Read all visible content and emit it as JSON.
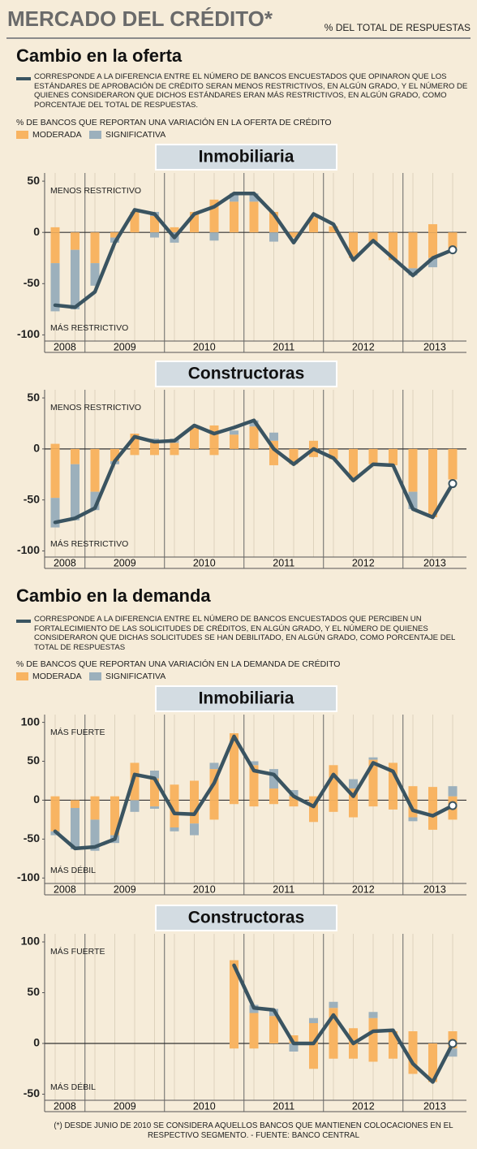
{
  "header": {
    "title": "MERCADO DEL CRÉDITO*",
    "subtitle": "% DEL TOTAL DE RESPUESTAS"
  },
  "sections": [
    {
      "title": "Cambio en la oferta",
      "line_note": "CORRESPONDE A LA DIFERENCIA ENTRE EL NÚMERO DE BANCOS ENCUESTADOS QUE OPINARON QUE LOS ESTÁNDARES DE APROBACIÓN DE CRÉDITO SERAN MENOS RESTRICTIVOS, EN ALGÚN GRADO, Y EL NÚMERO DE QUIENES CONSIDERARON QUE DICHOS ESTÁNDARES ERAN MÁS RESTRICTIVOS, EN ALGÚN GRADO, COMO PORCENTAJE DEL TOTAL DE RESPUESTAS.",
      "bar_note": "% DE BANCOS QUE REPORTAN UNA VARIACIÓN EN LA OFERTA DE CRÉDITO"
    },
    {
      "title": "Cambio en la demanda",
      "line_note": "CORRESPONDE A LA DIFERENCIA ENTRE EL NÚMERO DE BANCOS ENCUESTADOS QUE PERCIBEN UN FORTALECIMIENTO DE LAS SOLICITUDES DE CRÉDITOS, EN ALGÚN GRADO, Y EL NÚMERO DE QUIENES CONSIDERARON QUE DICHAS SOLICITUDES SE HAN DEBILITADO, EN ALGÚN GRADO, COMO PORCENTAJE DEL TOTAL DE RESPUESTAS",
      "bar_note": "% DE BANCOS QUE REPORTAN UNA VARIACIÓN EN LA DEMANDA DE CRÉDITO"
    }
  ],
  "chart_data": [
    {
      "type": "bar-line",
      "title": "Inmobiliaria",
      "annotations": [
        "MENOS RESTRICTIVO",
        "MÁS RESTRICTIVO"
      ],
      "categories": [
        null,
        null,
        null,
        null,
        null,
        null,
        null,
        null,
        null,
        null,
        null,
        null,
        null,
        null,
        null,
        null,
        null,
        null,
        null,
        null,
        null
      ],
      "years": [
        {
          "label": "2008",
          "quarters": 2
        },
        {
          "label": "2009",
          "quarters": 4
        },
        {
          "label": "2010",
          "quarters": 4
        },
        {
          "label": "2011",
          "quarters": 4
        },
        {
          "label": "2012",
          "quarters": 4
        },
        {
          "label": "2013",
          "quarters": 3
        }
      ],
      "ylim": [
        -106,
        58
      ],
      "yticks": [
        50,
        0,
        -50,
        -100
      ],
      "series": [
        {
          "name": "MODERADA",
          "color": "#f8b462",
          "values": [
            5,
            0,
            0,
            0,
            20,
            16,
            5,
            20,
            32,
            30,
            30,
            20,
            0,
            15,
            6,
            0,
            0,
            0,
            0,
            8,
            0
          ],
          "values_negative": [
            -30,
            -17,
            -30,
            -5,
            0,
            0,
            0,
            0,
            0,
            0,
            0,
            0,
            -5,
            0,
            0,
            -25,
            -10,
            -27,
            -35,
            -25,
            -15
          ]
        },
        {
          "name": "SIGNIFICATIVA",
          "color": "#9cb0bc",
          "values": [
            0,
            0,
            0,
            0,
            0,
            4,
            0,
            0,
            0,
            8,
            8,
            0,
            0,
            0,
            0,
            0,
            0,
            0,
            0,
            0,
            0
          ],
          "values_negative": [
            -47,
            -58,
            -22,
            -5,
            0,
            -5,
            -10,
            0,
            -8,
            0,
            0,
            -9,
            0,
            0,
            0,
            0,
            0,
            0,
            -7,
            -9,
            0
          ]
        },
        {
          "color": "#3a5461",
          "values": [
            -71,
            -73,
            -58,
            -10,
            22,
            18,
            -5,
            18,
            25,
            38,
            38,
            18,
            -10,
            18,
            8,
            -27,
            -8,
            -25,
            -42,
            -25,
            -17
          ]
        }
      ]
    },
    {
      "type": "bar-line",
      "title": "Constructoras",
      "annotations": [
        "MENOS RESTRICTIVO",
        "MÁS RESTRICTIVO"
      ],
      "categories": [
        null,
        null,
        null,
        null,
        null,
        null,
        null,
        null,
        null,
        null,
        null,
        null,
        null,
        null,
        null,
        null,
        null,
        null,
        null,
        null,
        null
      ],
      "years": [
        {
          "label": "2008",
          "quarters": 2
        },
        {
          "label": "2009",
          "quarters": 4
        },
        {
          "label": "2010",
          "quarters": 4
        },
        {
          "label": "2011",
          "quarters": 4
        },
        {
          "label": "2012",
          "quarters": 4
        },
        {
          "label": "2013",
          "quarters": 3
        }
      ],
      "ylim": [
        -106,
        58
      ],
      "yticks": [
        50,
        0,
        -50,
        -100
      ],
      "series": [
        {
          "name": "MODERADA",
          "color": "#f8b462",
          "values": [
            5,
            0,
            0,
            0,
            15,
            7,
            6,
            22,
            23,
            14,
            22,
            8,
            0,
            8,
            0,
            0,
            0,
            0,
            0,
            0,
            0
          ],
          "values_negative": [
            -48,
            -15,
            -42,
            -12,
            -6,
            -6,
            -6,
            0,
            -6,
            0,
            0,
            -16,
            -15,
            -8,
            -10,
            -30,
            -15,
            -16,
            -42,
            -67,
            -30
          ]
        },
        {
          "name": "SIGNIFICATIVA",
          "color": "#9cb0bc",
          "values": [
            0,
            0,
            0,
            0,
            0,
            3,
            4,
            0,
            0,
            4,
            6,
            8,
            0,
            0,
            0,
            0,
            0,
            0,
            0,
            0,
            0
          ],
          "values_negative": [
            -29,
            -55,
            -18,
            -3,
            0,
            0,
            0,
            0,
            0,
            0,
            0,
            0,
            0,
            0,
            0,
            0,
            0,
            0,
            -17,
            0,
            0
          ]
        },
        {
          "color": "#3a5461",
          "values": [
            -72,
            -68,
            -58,
            -12,
            12,
            7,
            8,
            23,
            15,
            21,
            28,
            0,
            -15,
            0,
            -9,
            -31,
            -15,
            -16,
            -59,
            -67,
            -34
          ]
        }
      ]
    },
    {
      "type": "bar-line",
      "title": "Inmobiliaria",
      "annotations": [
        "MÁS FUERTE",
        "MÁS DÉBIL"
      ],
      "categories": [
        null,
        null,
        null,
        null,
        null,
        null,
        null,
        null,
        null,
        null,
        null,
        null,
        null,
        null,
        null,
        null,
        null,
        null,
        null,
        null,
        null
      ],
      "years": [
        {
          "label": "2008",
          "quarters": 2
        },
        {
          "label": "2009",
          "quarters": 4
        },
        {
          "label": "2010",
          "quarters": 4
        },
        {
          "label": "2011",
          "quarters": 4
        },
        {
          "label": "2012",
          "quarters": 4
        },
        {
          "label": "2013",
          "quarters": 3
        }
      ],
      "ylim": [
        -107,
        110
      ],
      "yticks": [
        100,
        50,
        0,
        -50,
        -100
      ],
      "series": [
        {
          "name": "MODERADA",
          "color": "#f8b462",
          "values": [
            5,
            0,
            5,
            5,
            48,
            28,
            20,
            25,
            40,
            86,
            45,
            15,
            5,
            5,
            45,
            15,
            52,
            48,
            18,
            17,
            5
          ],
          "values_negative": [
            -40,
            -10,
            -25,
            -45,
            0,
            -8,
            -35,
            -30,
            -25,
            -5,
            -8,
            -5,
            -8,
            -28,
            -15,
            -22,
            -8,
            -12,
            -22,
            -38,
            -25
          ]
        },
        {
          "name": "SIGNIFICATIVA",
          "color": "#9cb0bc",
          "values": [
            0,
            0,
            0,
            0,
            0,
            10,
            0,
            0,
            8,
            0,
            5,
            25,
            8,
            0,
            0,
            12,
            3,
            0,
            0,
            0,
            13
          ],
          "values_negative": [
            -5,
            -53,
            -40,
            -10,
            -15,
            -3,
            -5,
            -15,
            0,
            0,
            0,
            0,
            0,
            0,
            0,
            0,
            0,
            0,
            -5,
            0,
            0
          ]
        },
        {
          "color": "#3a5461",
          "values": [
            -40,
            -62,
            -60,
            -50,
            33,
            28,
            -17,
            -18,
            22,
            82,
            38,
            33,
            5,
            -8,
            33,
            5,
            48,
            37,
            -13,
            -20,
            -7
          ]
        }
      ]
    },
    {
      "type": "bar-line",
      "title": "Constructoras",
      "annotations": [
        "MÁS FUERTE",
        "MÁS DÉBIL"
      ],
      "categories": [
        null,
        null,
        null,
        null,
        null,
        null,
        null,
        null,
        null,
        null,
        null,
        null,
        null,
        null,
        null,
        null,
        null,
        null,
        null,
        null,
        null
      ],
      "years": [
        {
          "label": "2008",
          "quarters": 2
        },
        {
          "label": "2009",
          "quarters": 4
        },
        {
          "label": "2010",
          "quarters": 4
        },
        {
          "label": "2011",
          "quarters": 4
        },
        {
          "label": "2012",
          "quarters": 4
        },
        {
          "label": "2013",
          "quarters": 3
        }
      ],
      "ylim": [
        -56,
        108
      ],
      "yticks": [
        100,
        50,
        0,
        -50
      ],
      "series": [
        {
          "name": "MODERADA",
          "color": "#f8b462",
          "values": [
            null,
            null,
            null,
            null,
            null,
            null,
            null,
            null,
            null,
            82,
            30,
            27,
            8,
            20,
            35,
            15,
            25,
            12,
            12,
            0,
            12
          ],
          "values_negative": [
            null,
            null,
            null,
            null,
            null,
            null,
            null,
            null,
            null,
            -5,
            -5,
            0,
            0,
            -25,
            -15,
            -15,
            -18,
            -15,
            -30,
            -38,
            -5
          ]
        },
        {
          "name": "SIGNIFICATIVA",
          "color": "#9cb0bc",
          "values": [
            null,
            null,
            null,
            null,
            null,
            null,
            null,
            null,
            null,
            0,
            8,
            7,
            0,
            5,
            6,
            0,
            6,
            0,
            0,
            0,
            0
          ],
          "values_negative": [
            null,
            null,
            null,
            null,
            null,
            null,
            null,
            null,
            null,
            0,
            0,
            0,
            -8,
            0,
            0,
            0,
            0,
            0,
            0,
            0,
            -8
          ]
        },
        {
          "color": "#3a5461",
          "values": [
            null,
            null,
            null,
            null,
            null,
            null,
            null,
            null,
            null,
            77,
            35,
            33,
            0,
            0,
            28,
            0,
            12,
            13,
            -20,
            -38,
            0
          ]
        }
      ]
    }
  ],
  "footnote": "(*) DESDE JUNIO DE 2010 SE CONSIDERA AQUELLOS BANCOS QUE MANTIENEN COLOCACIONES EN EL RESPECTIVO SEGMENTO. - FUENTE: BANCO CENTRAL"
}
